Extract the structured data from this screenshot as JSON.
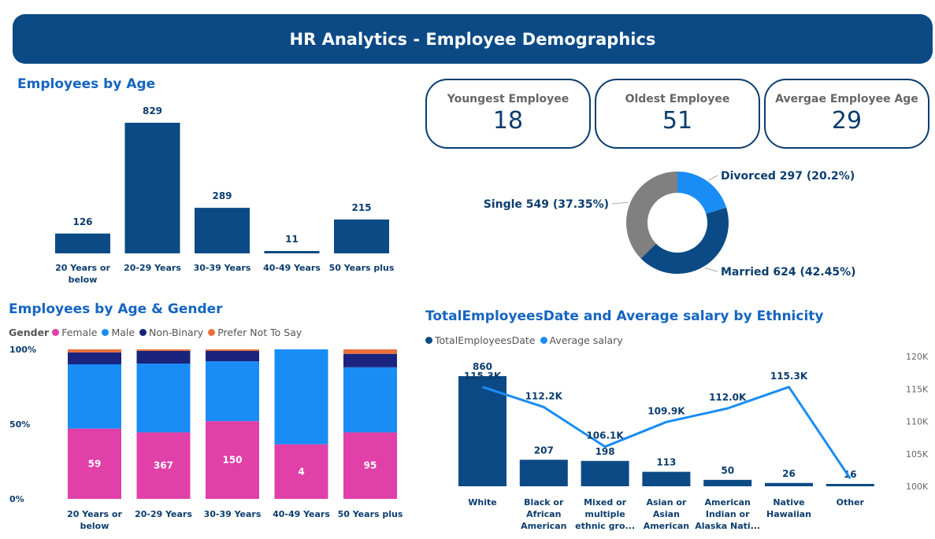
{
  "header": {
    "title": "HR Analytics - Employee Demographics"
  },
  "sections": {
    "age": "Employees by Age",
    "age_gender": "Employees by Age & Gender",
    "ethnicity": "TotalEmployeesDate and Average salary by Ethnicity"
  },
  "kpis": [
    {
      "label": "Youngest Employee",
      "value": "18"
    },
    {
      "label": "Oldest Employee",
      "value": "51"
    },
    {
      "label": "Avergae Employee Age",
      "value": "29"
    }
  ],
  "legend_gender": {
    "title": "Gender",
    "items": [
      {
        "label": "Female",
        "color": "#e040a8"
      },
      {
        "label": "Male",
        "color": "#1a8cf5"
      },
      {
        "label": "Non-Binary",
        "color": "#1a237e"
      },
      {
        "label": "Prefer Not To Say",
        "color": "#e8703a"
      }
    ]
  },
  "legend_ethnicity": {
    "items": [
      {
        "label": "TotalEmployeesDate",
        "color": "#0b4a85"
      },
      {
        "label": "Average salary",
        "color": "#1a8cf5"
      }
    ]
  },
  "chart_data": [
    {
      "id": "age",
      "type": "bar",
      "title": "Employees by Age",
      "categories": [
        "20 Years or below",
        "20-29 Years",
        "30-39 Years",
        "40-49 Years",
        "50 Years plus"
      ],
      "category_lines": [
        [
          "20 Years or",
          "below"
        ],
        [
          "20-29 Years"
        ],
        [
          "30-39 Years"
        ],
        [
          "40-49 Years"
        ],
        [
          "50 Years plus"
        ]
      ],
      "values": [
        126,
        829,
        289,
        11,
        215
      ],
      "color": "#0b4a85"
    },
    {
      "id": "marital",
      "type": "pie",
      "donut": true,
      "slices": [
        {
          "label": "Divorced 297 (20.2%)",
          "value": 297,
          "color": "#1a8cf5"
        },
        {
          "label": "Married 624 (42.45%)",
          "value": 624,
          "color": "#0b4a85"
        },
        {
          "label": "Single 549 (37.35%)",
          "value": 549,
          "color": "#808080"
        }
      ]
    },
    {
      "id": "age_gender",
      "type": "bar",
      "stacked": "percent",
      "title": "Employees by Age & Gender",
      "categories": [
        "20 Years or below",
        "20-29 Years",
        "30-39 Years",
        "40-49 Years",
        "50 Years plus"
      ],
      "category_lines": [
        [
          "20 Years or",
          "below"
        ],
        [
          "20-29 Years"
        ],
        [
          "30-39 Years"
        ],
        [
          "40-49 Years"
        ],
        [
          "50 Years plus"
        ]
      ],
      "yticks": [
        "0%",
        "50%",
        "100%"
      ],
      "female_labels": [
        "59",
        "367",
        "150",
        "4",
        "95"
      ],
      "series": [
        {
          "name": "Female",
          "color": "#e040a8",
          "values": [
            0.47,
            0.445,
            0.52,
            0.365,
            0.445
          ]
        },
        {
          "name": "Male",
          "color": "#1a8cf5",
          "values": [
            0.43,
            0.46,
            0.4,
            0.635,
            0.435
          ]
        },
        {
          "name": "Non-Binary",
          "color": "#1a237e",
          "values": [
            0.08,
            0.085,
            0.07,
            0.0,
            0.09
          ]
        },
        {
          "name": "Prefer Not To Say",
          "color": "#e8703a",
          "values": [
            0.02,
            0.01,
            0.01,
            0.0,
            0.03
          ]
        }
      ]
    },
    {
      "id": "ethnicity",
      "type": "bar",
      "title": "TotalEmployeesDate and Average salary by Ethnicity",
      "categories": [
        "White",
        "Black or African American",
        "Mixed or multiple ethnic gro...",
        "Asian or Asian American",
        "American Indian or Alaska Nati...",
        "Native Hawaiian",
        "Other"
      ],
      "category_lines": [
        [
          "White"
        ],
        [
          "Black or",
          "African",
          "American"
        ],
        [
          "Mixed or",
          "multiple",
          "ethnic gro..."
        ],
        [
          "Asian or",
          "Asian",
          "American"
        ],
        [
          "American",
          "Indian or",
          "Alaska Nati..."
        ],
        [
          "Native",
          "Hawaiian"
        ],
        [
          "Other"
        ]
      ],
      "series": [
        {
          "name": "TotalEmployeesDate",
          "type": "bar",
          "color": "#0b4a85",
          "values": [
            860,
            207,
            198,
            113,
            50,
            26,
            16
          ],
          "labels": [
            "860",
            "207",
            "198",
            "113",
            "50",
            "26",
            "16"
          ]
        },
        {
          "name": "Average salary",
          "type": "line",
          "color": "#1a8cf5",
          "values": [
            115.3,
            112.2,
            106.1,
            109.9,
            112.0,
            115.3,
            101.2
          ],
          "labels": [
            "115.3K",
            "112.2K",
            "106.1K",
            "109.9K",
            "112.0K",
            "115.3K",
            ""
          ]
        }
      ],
      "y2_ticks": [
        "100K",
        "105K",
        "110K",
        "115K",
        "120K"
      ],
      "y2_range": [
        100,
        120
      ]
    }
  ]
}
